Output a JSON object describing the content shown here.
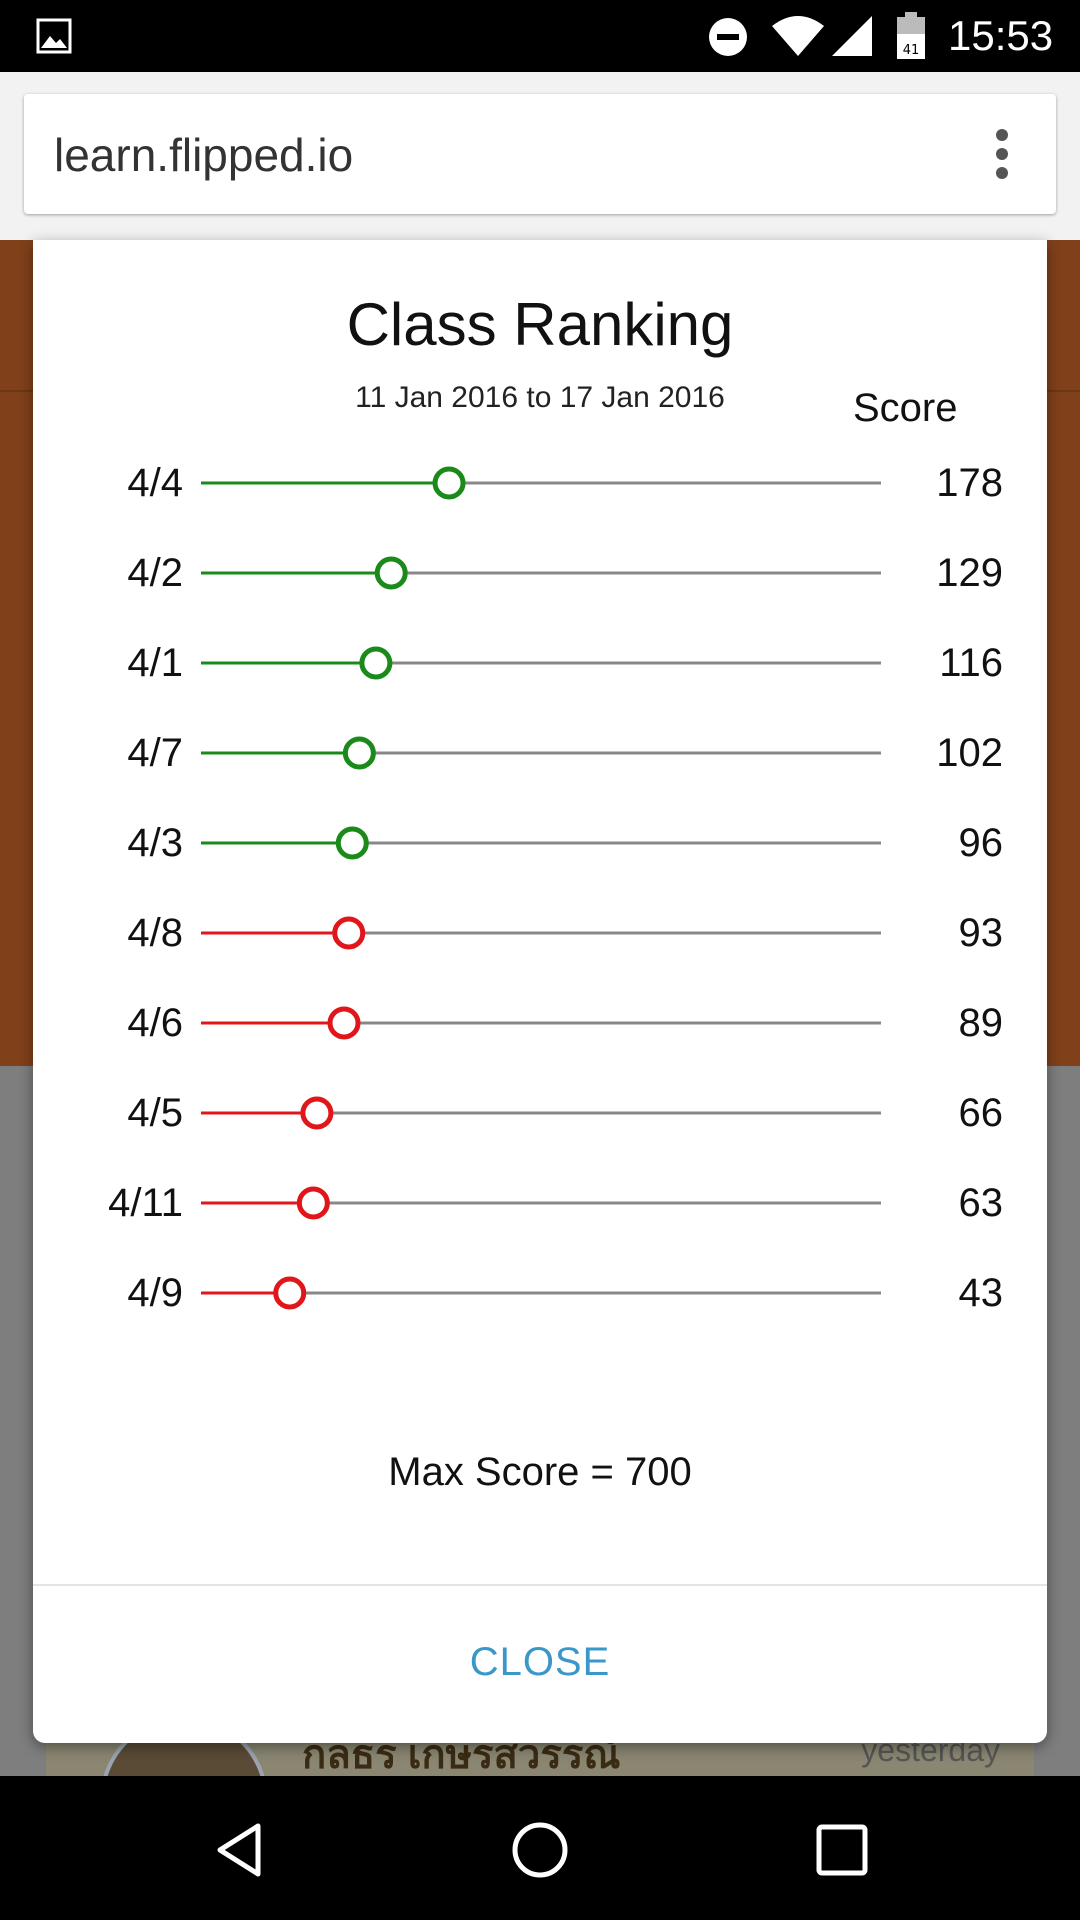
{
  "status_bar": {
    "time": "15:53",
    "battery_level": "41",
    "icons": [
      "gallery-icon",
      "do-not-disturb-icon",
      "wifi-icon",
      "signal-icon",
      "battery-icon"
    ]
  },
  "browser": {
    "url": "learn.flipped.io",
    "menu_icon": "more-vert-icon"
  },
  "background": {
    "card_name": "กลธร เกษรสวรรณ์",
    "card_time": "yesterday"
  },
  "dialog": {
    "title": "Class Ranking",
    "subtitle": "11 Jan 2016 to 17 Jan 2016",
    "score_header": "Score",
    "max_score_text": "Max Score = 700",
    "close_label": "CLOSE"
  },
  "colors": {
    "above_threshold": "#1a8a1a",
    "below_threshold": "#e0161b",
    "track": "#888888",
    "close_text": "#3a97c9"
  },
  "chart_data": {
    "type": "scatter",
    "max_score": 700,
    "rows": [
      {
        "label": "4/4",
        "score": 178,
        "status": "good"
      },
      {
        "label": "4/2",
        "score": 129,
        "status": "good"
      },
      {
        "label": "4/1",
        "score": 116,
        "status": "good"
      },
      {
        "label": "4/7",
        "score": 102,
        "status": "good"
      },
      {
        "label": "4/3",
        "score": 96,
        "status": "good"
      },
      {
        "label": "4/8",
        "score": 93,
        "status": "bad"
      },
      {
        "label": "4/6",
        "score": 89,
        "status": "bad"
      },
      {
        "label": "4/5",
        "score": 66,
        "status": "bad"
      },
      {
        "label": "4/11",
        "score": 63,
        "status": "bad"
      },
      {
        "label": "4/9",
        "score": 43,
        "status": "bad"
      }
    ]
  }
}
